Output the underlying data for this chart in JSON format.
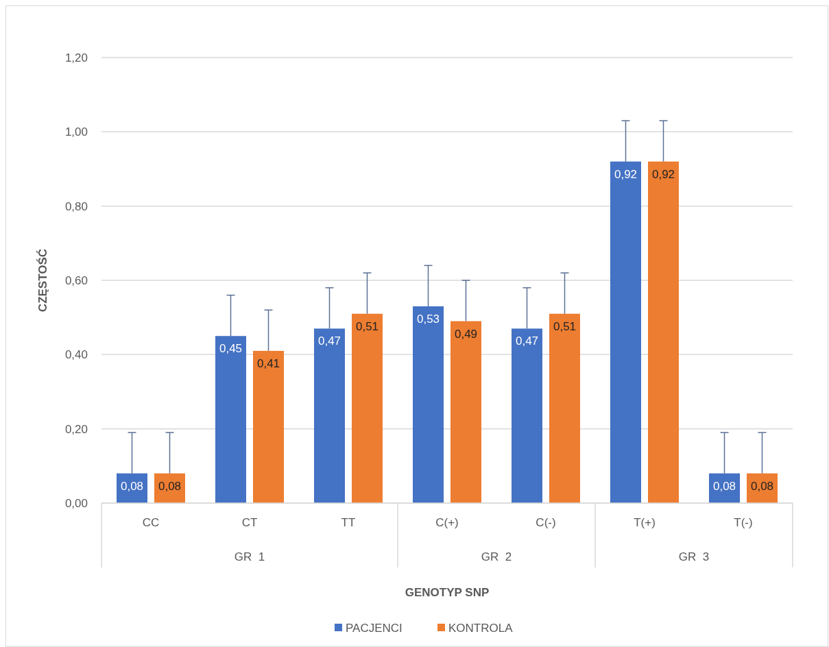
{
  "chart_data": {
    "type": "bar",
    "xlabel": "GENOTYP SNP",
    "ylabel": "CZĘSTOŚĆ",
    "categories": [
      "CC",
      "CT",
      "TT",
      "C(+)",
      "C(-)",
      "T(+)",
      "T(-)"
    ],
    "series": [
      {
        "name": "PACJENCI",
        "color": "#4472c4",
        "values": [
          0.08,
          0.45,
          0.47,
          0.53,
          0.47,
          0.92,
          0.08
        ],
        "errors": [
          0.11,
          0.11,
          0.11,
          0.11,
          0.11,
          0.11,
          0.11
        ],
        "value_labels": [
          "0,08",
          "0,45",
          "0,47",
          "0,53",
          "0,47",
          "0,92",
          "0,08"
        ]
      },
      {
        "name": "KONTROLA",
        "color": "#ed7d31",
        "values": [
          0.08,
          0.41,
          0.51,
          0.49,
          0.51,
          0.92,
          0.08
        ],
        "errors": [
          0.11,
          0.11,
          0.11,
          0.11,
          0.11,
          0.11,
          0.11
        ],
        "value_labels": [
          "0,08",
          "0,41",
          "0,51",
          "0,49",
          "0,51",
          "0,92",
          "0,08"
        ]
      }
    ],
    "annotations": [
      "GR  1",
      "GR  2",
      "GR  3"
    ],
    "ylim": [
      0,
      1.2
    ],
    "yticks": [
      {
        "value": 0,
        "label": "0,00"
      },
      {
        "value": 0.2,
        "label": "0,20"
      },
      {
        "value": 0.4,
        "label": "0,40"
      },
      {
        "value": 0.6,
        "label": "0,60"
      },
      {
        "value": 0.8,
        "label": "0,80"
      },
      {
        "value": 1,
        "label": "1,00"
      },
      {
        "value": 1.2,
        "label": "1,20"
      }
    ],
    "grid": "y",
    "legend": "bottom"
  }
}
